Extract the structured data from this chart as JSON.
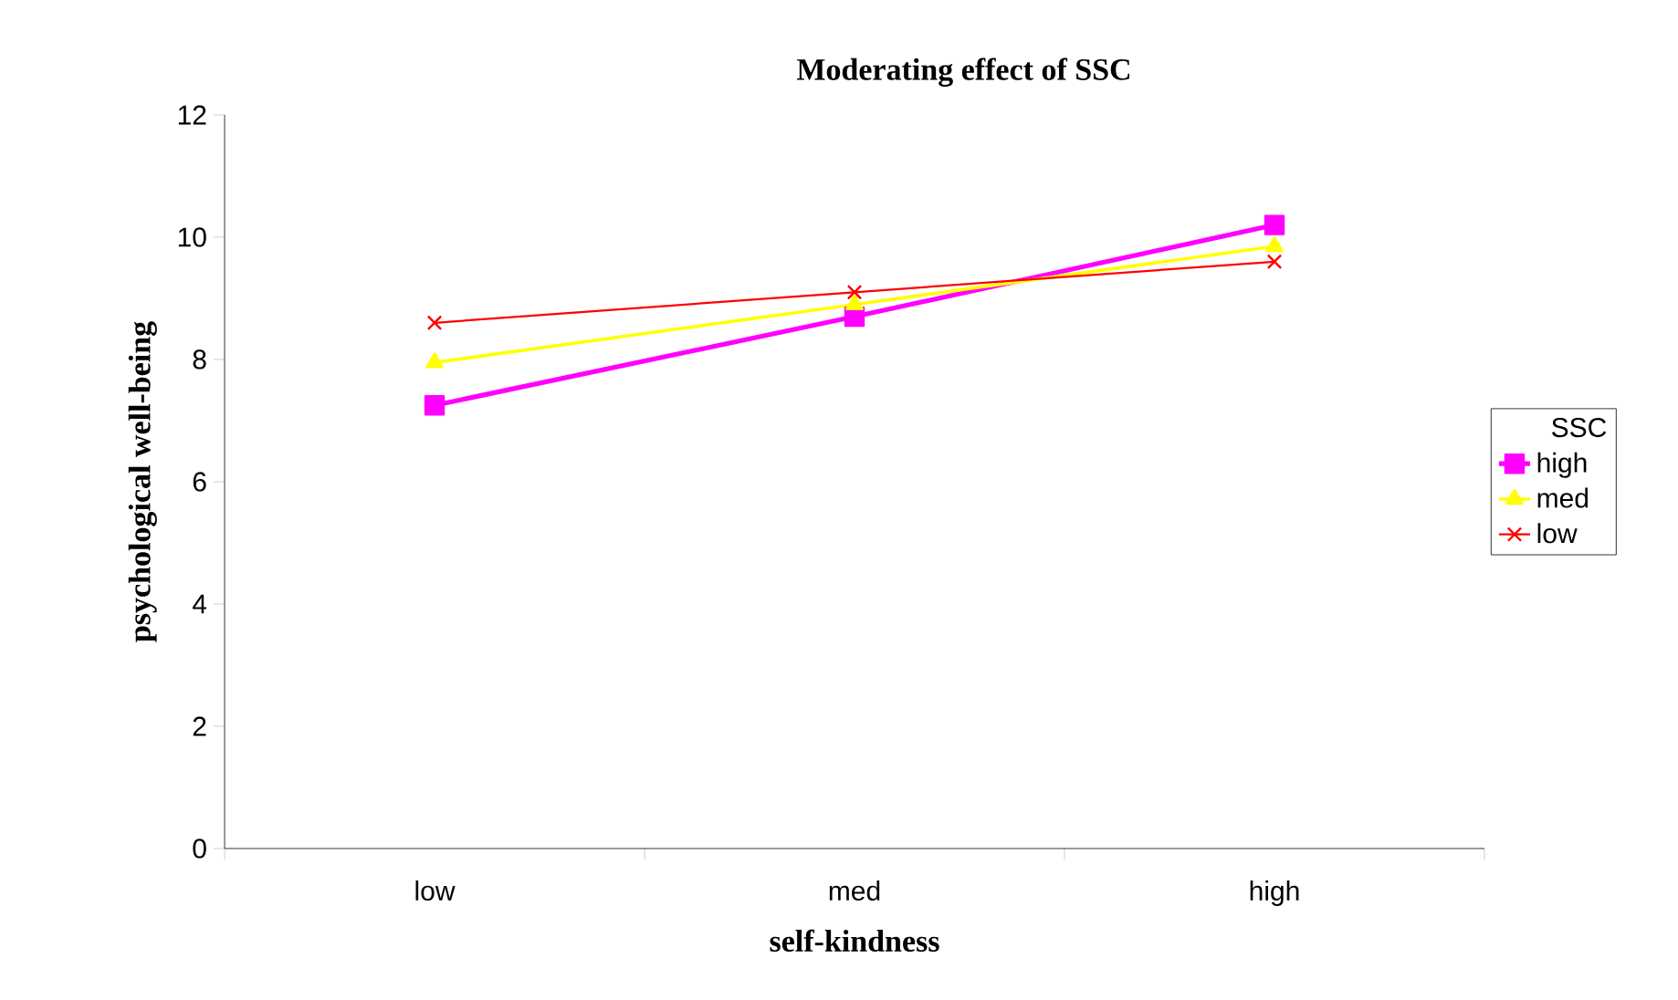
{
  "chart_data": {
    "type": "line",
    "title": "Moderating effect of SSC",
    "xlabel": "self-kindness",
    "ylabel": "psychological well-being",
    "legend_title": "SSC",
    "categories": [
      "low",
      "med",
      "high"
    ],
    "series": [
      {
        "name": "high",
        "color": "#ff00ff",
        "marker": "square",
        "values": [
          7.25,
          8.7,
          10.2
        ]
      },
      {
        "name": "med",
        "color": "#ffff00",
        "marker": "triangle",
        "values": [
          7.95,
          8.9,
          9.85
        ]
      },
      {
        "name": "low",
        "color": "#ff0000",
        "marker": "cross",
        "values": [
          8.6,
          9.1,
          9.6
        ]
      }
    ],
    "ylim": [
      0,
      12
    ],
    "yticks": [
      0,
      2,
      4,
      6,
      8,
      10,
      12
    ],
    "legend": "right",
    "line_style": "solid",
    "grid": false
  }
}
